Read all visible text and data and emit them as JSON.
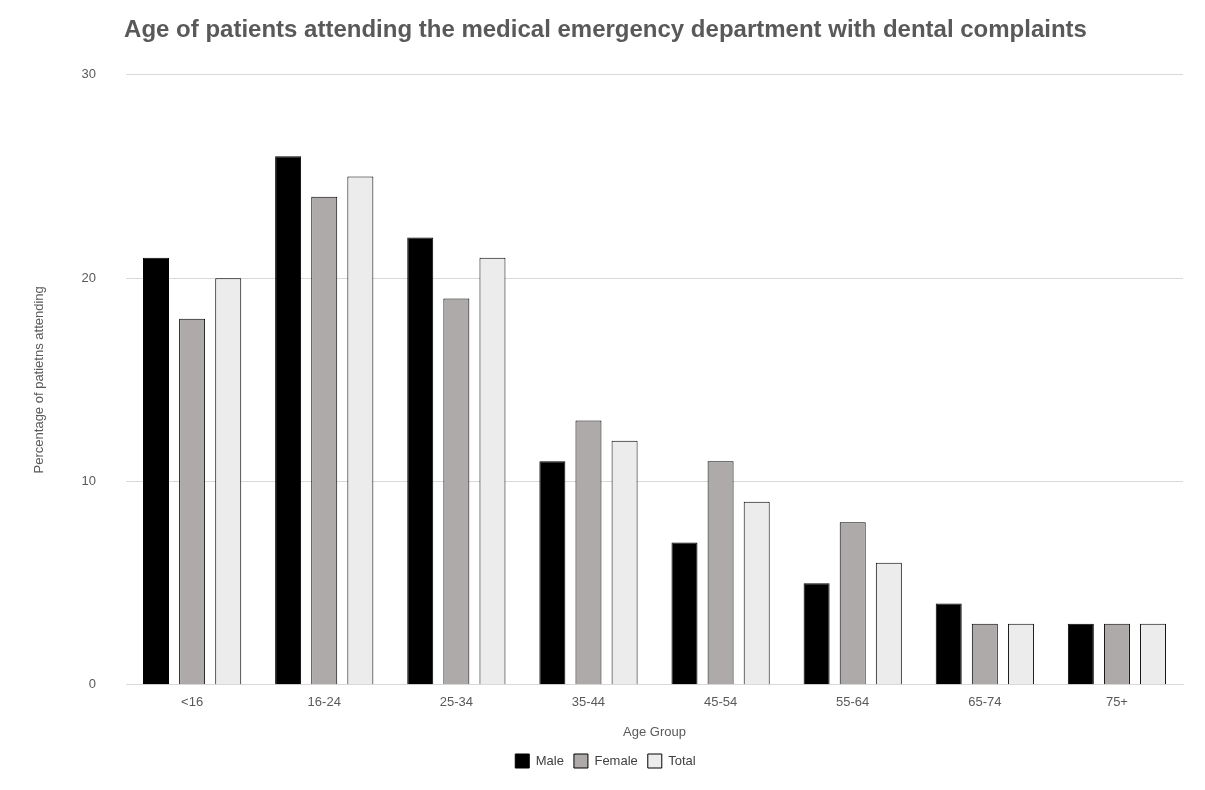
{
  "chart_data": {
    "type": "bar",
    "title": "Age of patients attending the medical emergency department with dental complaints",
    "xlabel": "Age Group",
    "ylabel": "Percentage of patietns attending",
    "categories": [
      "<16",
      "16-24",
      "25-34",
      "35-44",
      "45-54",
      "55-64",
      "65-74",
      "75+"
    ],
    "series": [
      {
        "name": "Male",
        "color": "#000000",
        "values": [
          21,
          26,
          22,
          11,
          7,
          5,
          4,
          3
        ]
      },
      {
        "name": "Female",
        "color": "#aeaaaa",
        "values": [
          18,
          24,
          19,
          13,
          11,
          8,
          3,
          3
        ]
      },
      {
        "name": "Total",
        "color": "#ececec",
        "values": [
          20,
          25,
          21,
          12,
          9,
          6,
          3,
          3
        ]
      }
    ],
    "ylim": [
      0,
      30
    ],
    "yticks": [
      0,
      10,
      20,
      30
    ],
    "grid": "y",
    "legend": "bottom"
  }
}
